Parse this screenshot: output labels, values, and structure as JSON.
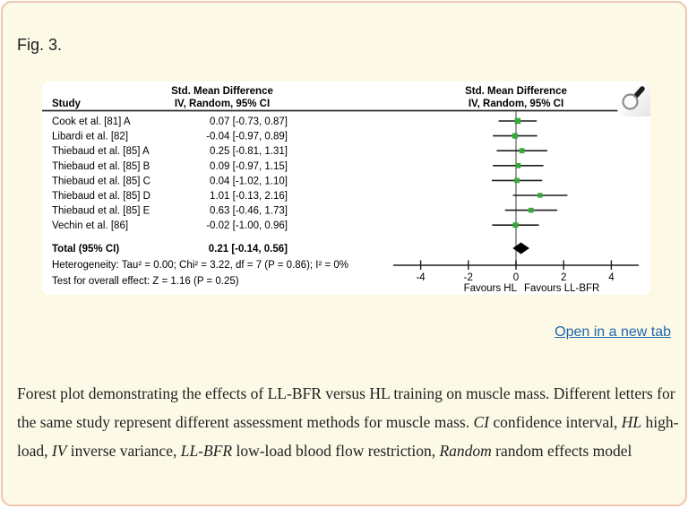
{
  "figure": {
    "label": "Fig. 3."
  },
  "link": {
    "open_in_new_tab": "Open in a new tab"
  },
  "caption": {
    "segments": [
      {
        "text": "Forest plot demonstrating the effects of LL-BFR versus HL training on muscle mass. Different letters for the same study represent different assessment methods for muscle mass. ",
        "italic": false
      },
      {
        "text": "CI",
        "italic": true
      },
      {
        "text": " confidence interval, ",
        "italic": false
      },
      {
        "text": "HL",
        "italic": true
      },
      {
        "text": " high-load, ",
        "italic": false
      },
      {
        "text": "IV",
        "italic": true
      },
      {
        "text": " inverse variance, ",
        "italic": false
      },
      {
        "text": "LL-BFR",
        "italic": true
      },
      {
        "text": " low-load blood flow restriction, ",
        "italic": false
      },
      {
        "text": "Random",
        "italic": true
      },
      {
        "text": " random effects model",
        "italic": false
      }
    ]
  },
  "chart_data": {
    "type": "forest",
    "headers": {
      "study_col": "Study",
      "effect_col_title": "Std. Mean Difference",
      "effect_col_sub": "IV, Random, 95% CI",
      "plot_col_title": "Std. Mean Difference",
      "plot_col_sub": "IV, Random, 95% CI"
    },
    "studies": [
      {
        "label": "Cook et al. [81] A",
        "estimate": 0.07,
        "ci_low": -0.73,
        "ci_high": 0.87,
        "text": "0.07 [-0.73, 0.87]"
      },
      {
        "label": "Libardi et al. [82]",
        "estimate": -0.04,
        "ci_low": -0.97,
        "ci_high": 0.89,
        "text": "-0.04 [-0.97, 0.89]"
      },
      {
        "label": "Thiebaud et al. [85] A",
        "estimate": 0.25,
        "ci_low": -0.81,
        "ci_high": 1.31,
        "text": "0.25 [-0.81, 1.31]"
      },
      {
        "label": "Thiebaud et al. [85] B",
        "estimate": 0.09,
        "ci_low": -0.97,
        "ci_high": 1.15,
        "text": "0.09 [-0.97, 1.15]"
      },
      {
        "label": "Thiebaud et al. [85] C",
        "estimate": 0.04,
        "ci_low": -1.02,
        "ci_high": 1.1,
        "text": "0.04 [-1.02, 1.10]"
      },
      {
        "label": "Thiebaud et al. [85] D",
        "estimate": 1.01,
        "ci_low": -0.13,
        "ci_high": 2.16,
        "text": "1.01 [-0.13, 2.16]"
      },
      {
        "label": "Thiebaud et al. [85] E",
        "estimate": 0.63,
        "ci_low": -0.46,
        "ci_high": 1.73,
        "text": "0.63 [-0.46, 1.73]"
      },
      {
        "label": "Vechin et al. [86]",
        "estimate": -0.02,
        "ci_low": -1.0,
        "ci_high": 0.96,
        "text": "-0.02 [-1.00, 0.96]"
      }
    ],
    "total": {
      "label": "Total (95% CI)",
      "estimate": 0.21,
      "ci_low": -0.14,
      "ci_high": 0.56,
      "text": "0.21 [-0.14, 0.56]"
    },
    "heterogeneity": "Heterogeneity: Tau² = 0.00; Chi² = 3.22, df = 7 (P = 0.86); I² = 0%",
    "overall_effect": "Test for overall effect: Z = 1.16 (P = 0.25)",
    "axis": {
      "ticks": [
        -4,
        -2,
        0,
        2,
        4
      ],
      "xmin": -5.15,
      "xmax": 5.15
    },
    "favours_left": "Favours HL",
    "favours_right": "Favours LL-BFR",
    "colors": {
      "marker_green": "#38a838",
      "diamond_black": "#000000",
      "link_blue": "#1f66ac"
    }
  }
}
